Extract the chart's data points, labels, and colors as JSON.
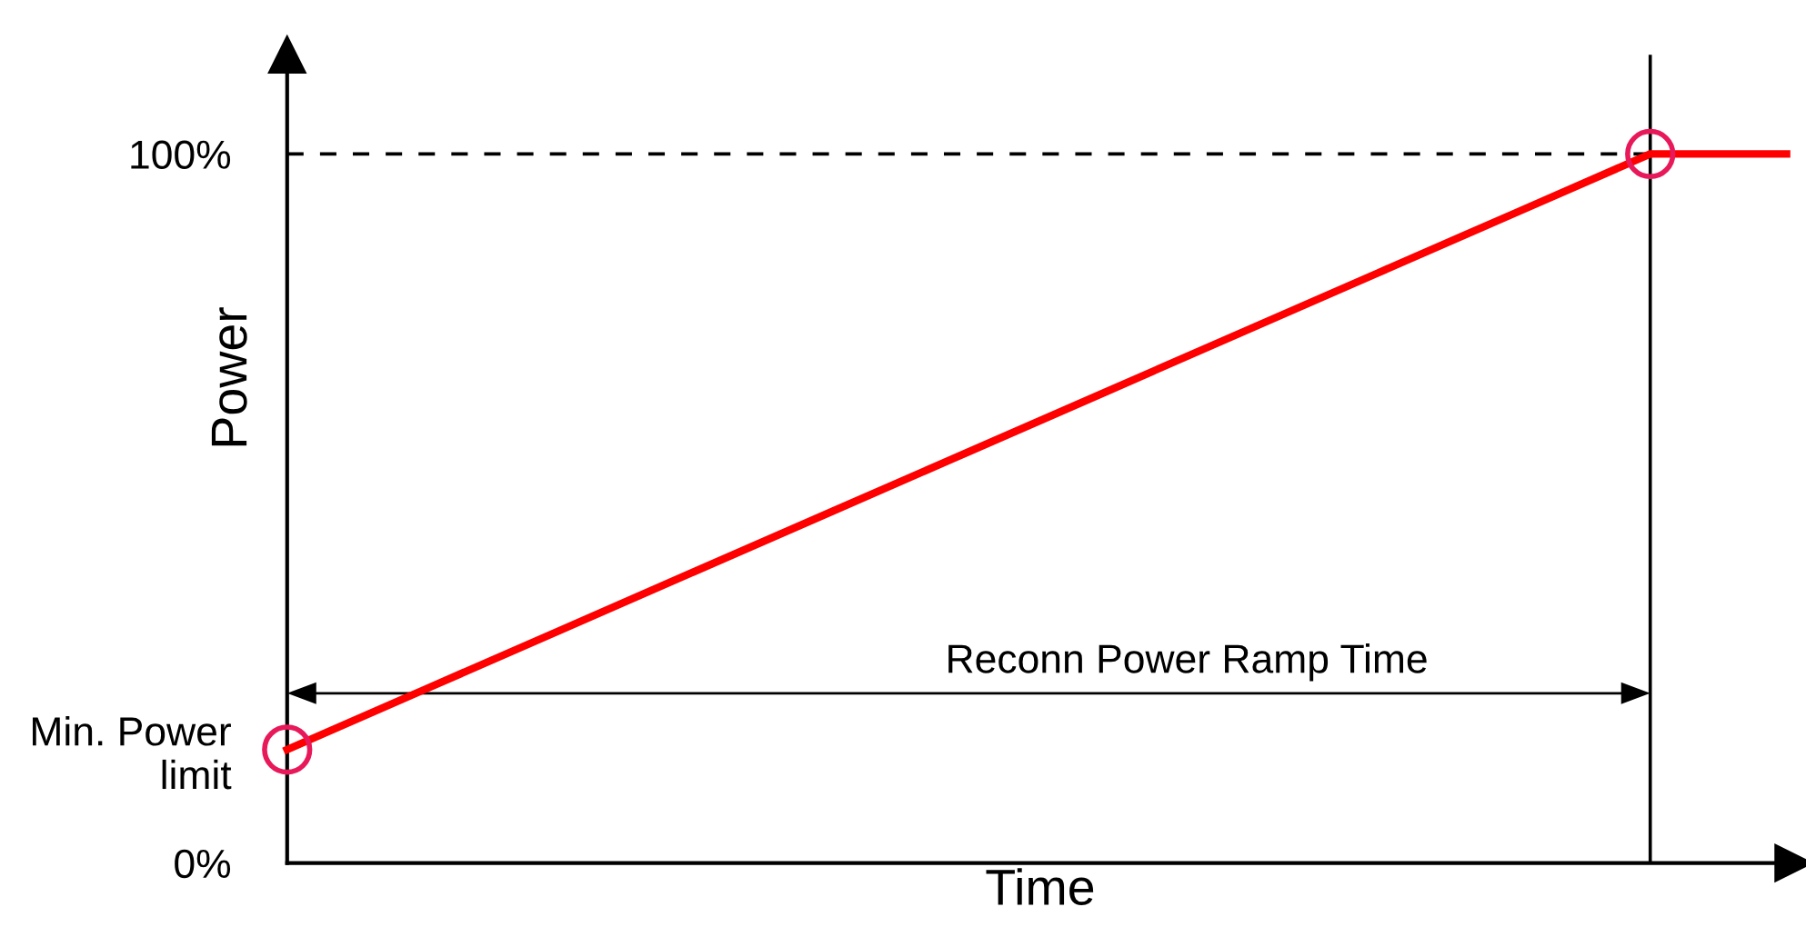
{
  "chart_data": {
    "type": "line",
    "xlabel": "Time",
    "ylabel": "Power",
    "categories": [
      null,
      null,
      null,
      null,
      null,
      null,
      null,
      null,
      null,
      null,
      null,
      null
    ],
    "ylim": [
      0,
      114
    ],
    "yticks": [
      {
        "value": 0,
        "label": "0%"
      },
      {
        "value": 16,
        "label": "Min. Power\nlimit"
      },
      {
        "value": 100,
        "label": "100%"
      }
    ],
    "tick_labels": "y",
    "grid": false,
    "legend": false,
    "series": [
      {
        "color": "#ff0000",
        "values": [
          16,
          24.4,
          32.8,
          41.2,
          49.6,
          58,
          66.4,
          74.8,
          83.2,
          91.6,
          100,
          100
        ],
        "marker": "none"
      },
      {
        "type": "scatter",
        "color": "#e8195a",
        "values": [
          16,
          null,
          null,
          null,
          null,
          null,
          null,
          null,
          null,
          null,
          100,
          null
        ],
        "marker": "circle"
      }
    ],
    "ref_lines": [
      {
        "axis": "y",
        "value": 100,
        "line_style": "dashed",
        "color": "#000000"
      }
    ],
    "annotations": [
      "Reconn Power Ramp Time"
    ]
  }
}
